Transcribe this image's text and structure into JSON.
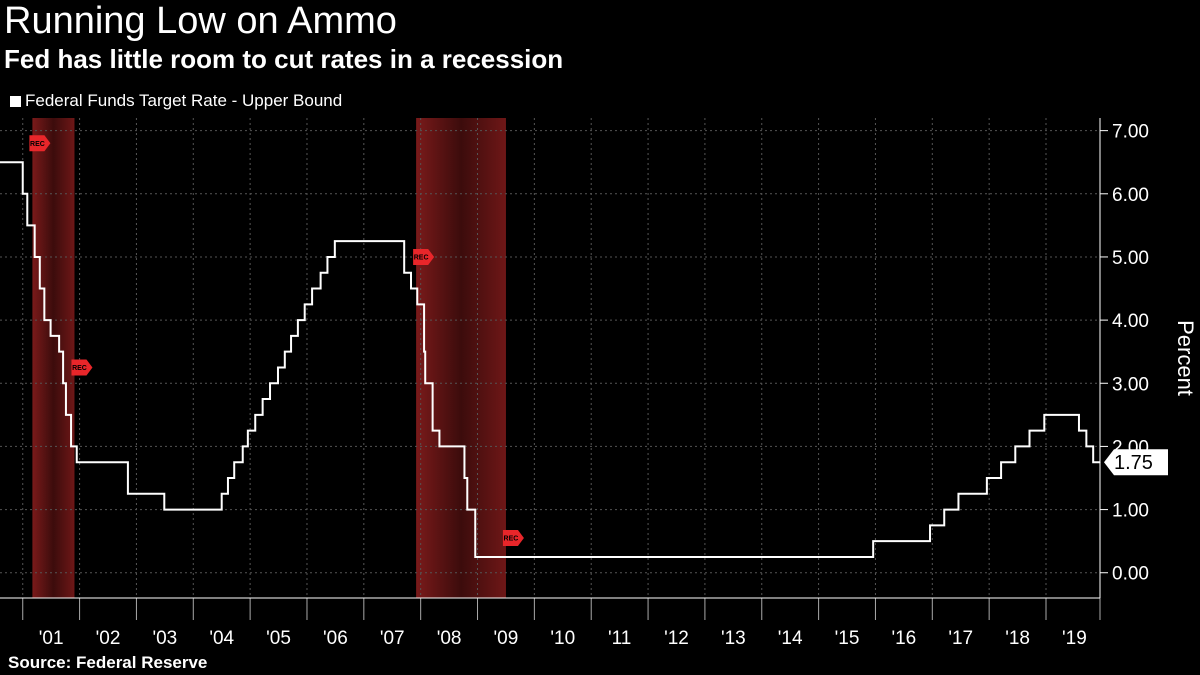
{
  "header": {
    "title": "Running Low on Ammo",
    "subtitle": "Fed has little room to cut rates in a recession"
  },
  "legend": {
    "label": "Federal Funds Target Rate - Upper Bound"
  },
  "footer": {
    "source": "Source: Federal Reserve"
  },
  "chart_data": {
    "type": "line",
    "title": "Running Low on Ammo",
    "subtitle": "Fed has little room to cut rates in a recession",
    "xlabel": "",
    "ylabel": "Percent",
    "xlim": [
      2000.6,
      2019.95
    ],
    "ylim": [
      -0.4,
      7.2
    ],
    "y_ticks": [
      {
        "value": 0,
        "label": "0.00"
      },
      {
        "value": 1,
        "label": "1.00"
      },
      {
        "value": 2,
        "label": "2.00"
      },
      {
        "value": 3,
        "label": "3.00"
      },
      {
        "value": 4,
        "label": "4.00"
      },
      {
        "value": 5,
        "label": "5.00"
      },
      {
        "value": 6,
        "label": "6.00"
      },
      {
        "value": 7,
        "label": "7.00"
      }
    ],
    "x_ticks": [
      {
        "value": 2001,
        "label": "'01"
      },
      {
        "value": 2002,
        "label": "'02"
      },
      {
        "value": 2003,
        "label": "'03"
      },
      {
        "value": 2004,
        "label": "'04"
      },
      {
        "value": 2005,
        "label": "'05"
      },
      {
        "value": 2006,
        "label": "'06"
      },
      {
        "value": 2007,
        "label": "'07"
      },
      {
        "value": 2008,
        "label": "'08"
      },
      {
        "value": 2009,
        "label": "'09"
      },
      {
        "value": 2010,
        "label": "'10"
      },
      {
        "value": 2011,
        "label": "'11"
      },
      {
        "value": 2012,
        "label": "'12"
      },
      {
        "value": 2013,
        "label": "'13"
      },
      {
        "value": 2014,
        "label": "'14"
      },
      {
        "value": 2015,
        "label": "'15"
      },
      {
        "value": 2016,
        "label": "'16"
      },
      {
        "value": 2017,
        "label": "'17"
      },
      {
        "value": 2018,
        "label": "'18"
      },
      {
        "value": 2019,
        "label": "'19"
      }
    ],
    "grid": true,
    "last_value_label": "1.75",
    "recession_marker_label": "REC",
    "recessions": [
      {
        "start": 2001.17,
        "end": 2001.91
      },
      {
        "start": 2007.92,
        "end": 2009.5
      }
    ],
    "recession_markers": [
      {
        "x": 2001.17,
        "y": 6.8
      },
      {
        "x": 2001.91,
        "y": 3.25
      },
      {
        "x": 2007.92,
        "y": 5.0
      },
      {
        "x": 2009.5,
        "y": 0.55
      }
    ],
    "series": [
      {
        "name": "Federal Funds Target Rate - Upper Bound",
        "color": "#ffffff",
        "recession_color": "#f5a623",
        "step": true,
        "points": [
          [
            2000.6,
            6.5
          ],
          [
            2001.0,
            6.0
          ],
          [
            2001.08,
            5.5
          ],
          [
            2001.21,
            5.0
          ],
          [
            2001.3,
            4.5
          ],
          [
            2001.38,
            4.0
          ],
          [
            2001.49,
            3.75
          ],
          [
            2001.64,
            3.5
          ],
          [
            2001.71,
            3.0
          ],
          [
            2001.76,
            2.5
          ],
          [
            2001.85,
            2.0
          ],
          [
            2001.95,
            1.75
          ],
          [
            2002.85,
            1.25
          ],
          [
            2003.49,
            1.0
          ],
          [
            2004.5,
            1.25
          ],
          [
            2004.61,
            1.5
          ],
          [
            2004.72,
            1.75
          ],
          [
            2004.87,
            2.0
          ],
          [
            2004.96,
            2.25
          ],
          [
            2005.09,
            2.5
          ],
          [
            2005.22,
            2.75
          ],
          [
            2005.35,
            3.0
          ],
          [
            2005.49,
            3.25
          ],
          [
            2005.61,
            3.5
          ],
          [
            2005.72,
            3.75
          ],
          [
            2005.84,
            4.0
          ],
          [
            2005.96,
            4.25
          ],
          [
            2006.09,
            4.5
          ],
          [
            2006.24,
            4.75
          ],
          [
            2006.36,
            5.0
          ],
          [
            2006.49,
            5.25
          ],
          [
            2007.71,
            4.75
          ],
          [
            2007.83,
            4.5
          ],
          [
            2007.94,
            4.25
          ],
          [
            2008.06,
            3.5
          ],
          [
            2008.08,
            3.0
          ],
          [
            2008.21,
            2.25
          ],
          [
            2008.33,
            2.0
          ],
          [
            2008.77,
            1.5
          ],
          [
            2008.82,
            1.0
          ],
          [
            2008.96,
            0.25
          ],
          [
            2015.96,
            0.5
          ],
          [
            2016.96,
            0.75
          ],
          [
            2017.21,
            1.0
          ],
          [
            2017.46,
            1.25
          ],
          [
            2017.96,
            1.5
          ],
          [
            2018.21,
            1.75
          ],
          [
            2018.46,
            2.0
          ],
          [
            2018.71,
            2.25
          ],
          [
            2018.97,
            2.5
          ],
          [
            2019.58,
            2.25
          ],
          [
            2019.71,
            2.0
          ],
          [
            2019.83,
            1.75
          ],
          [
            2019.95,
            1.75
          ]
        ]
      }
    ]
  }
}
